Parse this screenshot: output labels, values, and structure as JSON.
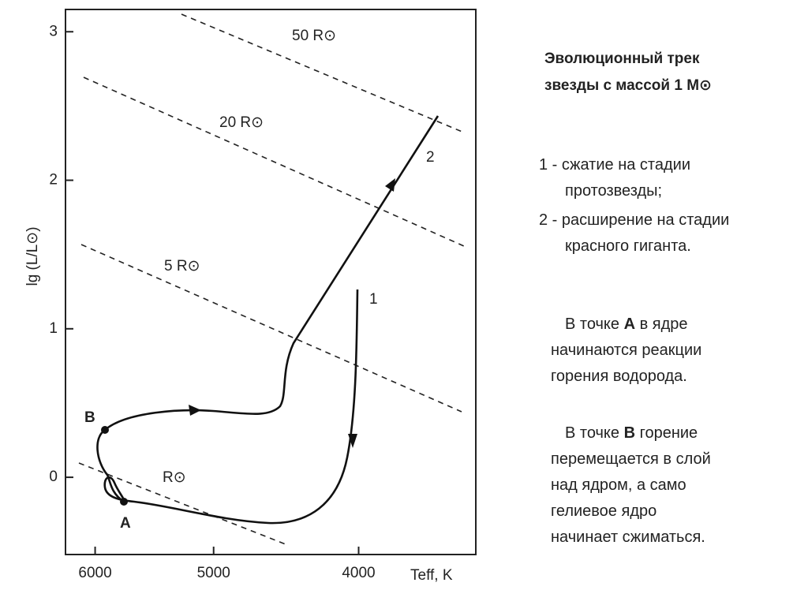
{
  "chart_data": {
    "type": "hr-track",
    "x_label": "Teff, K",
    "y_label": "lg (L/L⊙)",
    "xlim": [
      6280,
      3340
    ],
    "x_log": true,
    "xticks": [
      6000,
      5000,
      4000
    ],
    "ylim": [
      -0.52,
      3.15
    ],
    "yticks": [
      0,
      1,
      2,
      3
    ],
    "radius_labels": [
      "50 R⊙",
      "20 R⊙",
      "5 R⊙",
      "R⊙"
    ],
    "point_labels": [
      "A",
      "B"
    ],
    "track_labels": [
      "1",
      "2"
    ]
  },
  "panel": {
    "title": [
      "Эволюционный трек",
      "звезды с массой 1 M⊙"
    ],
    "items": [
      [
        "1 - сжатие на стадии",
        "протозвезды;"
      ],
      [
        "2 - расширение на стадии",
        "красного гиганта."
      ]
    ],
    "notes": [
      [
        [
          "В точке ",
          "А",
          " в ядре"
        ],
        [
          "начинаются реакции"
        ],
        [
          "горения водорода."
        ]
      ],
      [
        [
          "В точке ",
          "В",
          " горение"
        ],
        [
          "перемещается в слой"
        ],
        [
          "над ядром, а само"
        ],
        [
          "гелиевое ядро"
        ],
        [
          "начинает сжиматься."
        ]
      ]
    ]
  }
}
